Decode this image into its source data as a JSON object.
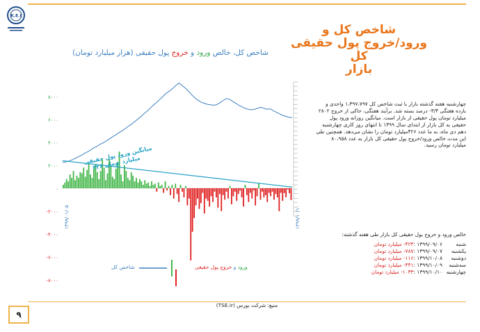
{
  "slide": {
    "title": "شاخص کل و\nورود/خروج پول حقیقی کل\nبازار",
    "page_number": "۹",
    "source": "منبع: شرکت بورس (TSE.ir)",
    "logo_text": "K.E.I"
  },
  "chart_title": {
    "part1": "شاخص کل، خالص ",
    "part2": "ورود",
    "part3": " و ",
    "part4": "خروج",
    "part5": " پول حقیقی (هزار میلیارد تومان)"
  },
  "annotation": {
    "line1": "میانگین ورود پول حقیقی",
    "line2": "۴۲۶ میلیارد تومان"
  },
  "legend": {
    "flow_in": "ورود",
    "flow_and": " و ",
    "flow_out": "خروج",
    "flow_rest": " پول حقیقی",
    "index": "شاخص کل"
  },
  "paragraph": "چهارشنبه هفته گذشته بازار با ثبت شاخص کل ۱،۳۹۷،۷۹۷ واحدی و بازده هفتگی ۳/۴- درصد بسته شد. برآیند هفتگی، حاکی از خروج ۲۸۰۲ میلیارد تومان پول حقیقی از بازار است. میانگین روزانه ورود پول حقیقی به کل بازار از ابتدای سال ۱۳۹۹ تا انتهای روز کاری چهارشنبه دهم دی ماه، به ما عدد ۴۲۶میلیارد تومان را نشان می‌دهد. همچنین طی این مدت خالص ورود/خروج پول حقیقی کل بازار به عدد ۸۰،۹۵۸ میلیارد تومان رسید.",
  "weekly": {
    "title": "خالص ورود و خروج پول حقیقی کل بازار طی هفته گذشته:",
    "rows": [
      {
        "day": "شنبه",
        "date": "۱۳۹۹/۰۹/۰۶ :",
        "value": "۴۲۳- میلیارد تومان"
      },
      {
        "day": "یکشنبه",
        "date": "۱۳۹۹/۰۹/۰۷ :",
        "value": "۷۸۷- میلیارد تومان"
      },
      {
        "day": "دوشنبه",
        "date": "۱۳۹۹/۱۰/۰۸ :",
        "value": "۱۱۶- میلیارد تومان"
      },
      {
        "day": "سه‌شنبه",
        "date": "۱۳۹۹/۱۰/۰۹ :",
        "value": "۴۴۱- میلیارد تومان"
      },
      {
        "day": "چهارشنبه",
        "date": "۱۳۹۹/۱۰/۱۰ :",
        "value": "۱۰۳۳- میلیارد تومان"
      }
    ]
  },
  "chart_data": {
    "type": "bar",
    "title": "شاخص کل، خالص ورود و خروج پول حقیقی (هزار میلیارد تومان)",
    "x_start_label": "۱۳۹۹/۰۱/۰۵",
    "x_end_label": "۱۳۹۹/۱۰/۱۰",
    "y_ticks": [
      "۸۰۰۰",
      "۶۰۰۰",
      "۴۰۰۰",
      "۲۰۰۰",
      "۰",
      "-۲۰۰۰",
      "-۴۰۰۰",
      "-۶۰۰۰",
      "-۸۰۰۰"
    ],
    "y_tick_values": [
      8000,
      6000,
      4000,
      2000,
      0,
      -2000,
      -4000,
      -6000,
      -8000
    ],
    "ylim": [
      -8000,
      8000
    ],
    "average_line": {
      "start": 2400,
      "end": 100
    },
    "colors": {
      "inflow": "#44b74a",
      "outflow": "#e02020",
      "index": "#3b7fbf",
      "average": "#29a3c7"
    },
    "series": [
      {
        "name": "ورود و خروج پول حقیقی",
        "values": [
          300,
          500,
          800,
          600,
          1200,
          900,
          1500,
          700,
          1100,
          900,
          1400,
          1300,
          1800,
          1000,
          1600,
          2200,
          1200,
          900,
          1700,
          2100,
          1400,
          800,
          1500,
          2500,
          1800,
          700,
          1300,
          2600,
          1900,
          1000,
          800,
          1700,
          2300,
          3200,
          1200,
          600,
          2000,
          1500,
          900,
          700,
          1400,
          1100,
          600,
          900,
          500,
          800,
          600,
          300,
          700,
          400,
          500,
          200,
          600,
          300,
          400,
          -300,
          500,
          200,
          300,
          -400,
          600,
          -200,
          200,
          -600,
          300,
          -900,
          400,
          -500,
          -1200,
          300,
          -300,
          -800,
          200,
          -1500,
          -900,
          -6300,
          -3800,
          -2600,
          -1500,
          -900,
          -1800,
          -1300,
          -400,
          -2200,
          -900,
          -1100,
          -1600,
          -700,
          -1200,
          -300,
          -800,
          -1700,
          -500,
          -2000,
          -600,
          -1000,
          -300,
          -900,
          200,
          -1400,
          -700,
          -300,
          -1100,
          -500,
          -200,
          -800,
          -1600,
          300,
          -600,
          -1200,
          -400,
          -900,
          -200,
          -1500,
          -700,
          400,
          -1000,
          -300,
          -800,
          -600,
          -1200,
          -400,
          -700,
          -300,
          -1000,
          -500,
          -800,
          -2000,
          -400,
          -1100,
          -423,
          -787,
          -116,
          -441,
          -1033
        ]
      },
      {
        "name": "شاخص کل",
        "values": [
          510000,
          520000,
          540000,
          560000,
          590000,
          620000,
          650000,
          690000,
          720000,
          760000,
          800000,
          830000,
          870000,
          900000,
          940000,
          980000,
          1020000,
          1060000,
          1100000,
          1140000,
          1180000,
          1230000,
          1270000,
          1320000,
          1370000,
          1420000,
          1480000,
          1530000,
          1590000,
          1650000,
          1700000,
          1760000,
          1820000,
          1880000,
          1920000,
          1970000,
          2030000,
          2080000,
          2030000,
          1980000,
          1920000,
          1850000,
          1790000,
          1740000,
          1700000,
          1680000,
          1660000,
          1650000,
          1640000,
          1650000,
          1690000,
          1730000,
          1770000,
          1760000,
          1720000,
          1680000,
          1640000,
          1610000,
          1580000,
          1560000,
          1550000,
          1560000,
          1580000,
          1600000,
          1580000,
          1560000,
          1570000,
          1530000,
          1500000,
          1470000,
          1440000,
          1420000,
          1400000,
          1398000
        ]
      }
    ]
  }
}
